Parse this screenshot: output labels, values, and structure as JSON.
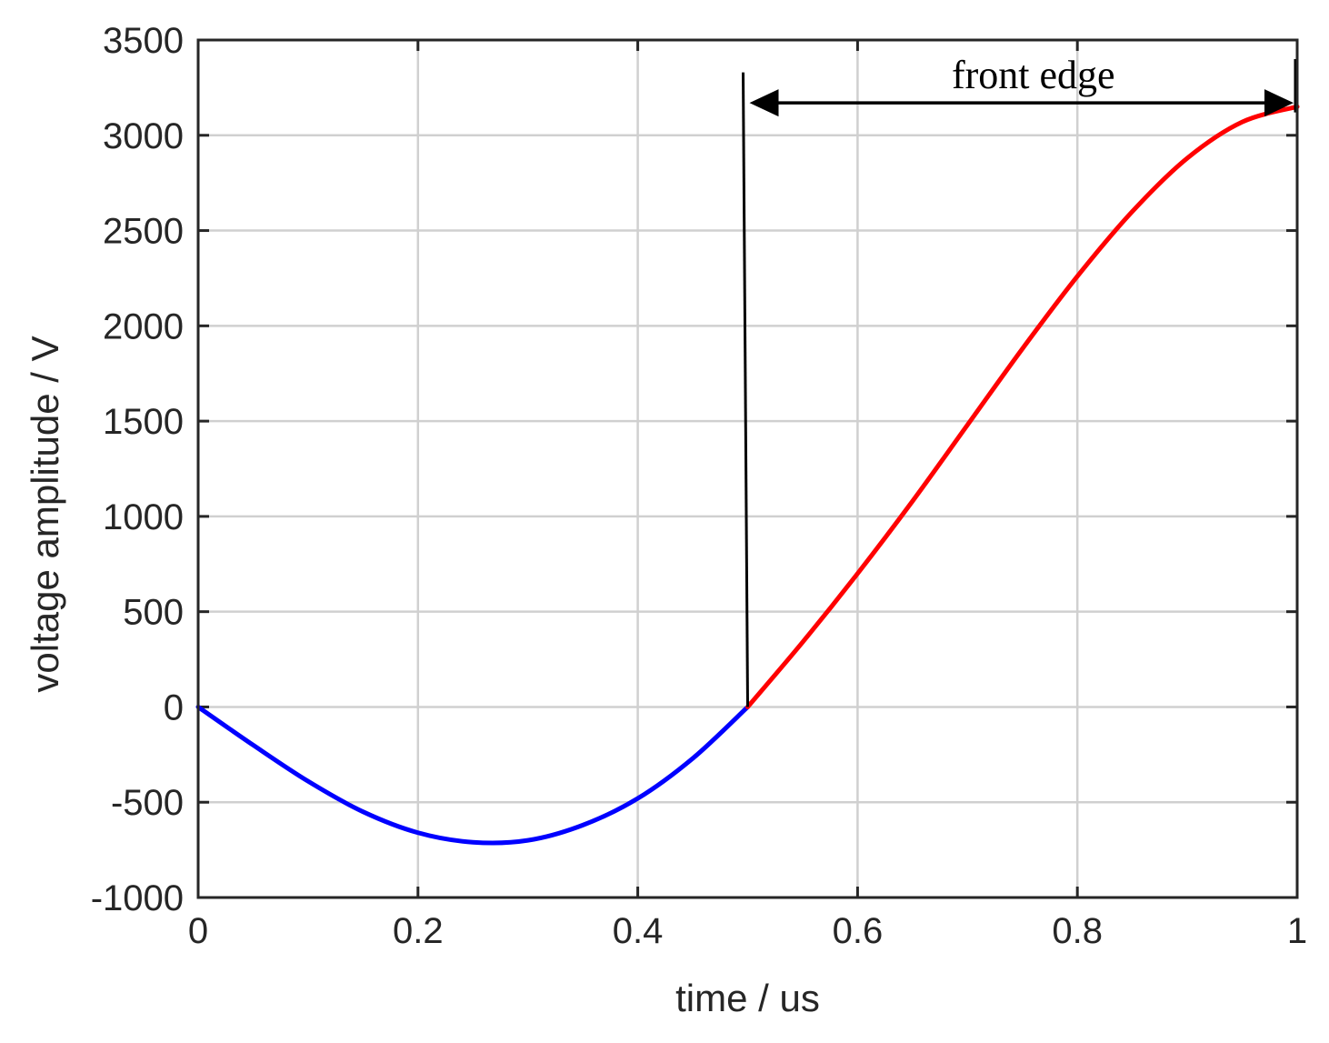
{
  "chart_data": {
    "type": "line",
    "xlabel": "time / us",
    "ylabel": "voltage amplitude / V",
    "xlim": [
      0,
      1
    ],
    "ylim": [
      -1000,
      3500
    ],
    "xticks": [
      0,
      0.2,
      0.4,
      0.6,
      0.8,
      1
    ],
    "xtick_labels": [
      "0",
      "0.2",
      "0.4",
      "0.6",
      "0.8",
      "1"
    ],
    "yticks": [
      -1000,
      -500,
      0,
      500,
      1000,
      1500,
      2000,
      2500,
      3000,
      3500
    ],
    "ytick_labels": [
      "-1000",
      "-500",
      "0",
      "500",
      "1000",
      "1500",
      "2000",
      "2500",
      "3000",
      "3500"
    ],
    "grid": true,
    "series": [
      {
        "color": "#0000ff",
        "x": [
          0,
          0.05,
          0.1,
          0.15,
          0.2,
          0.25,
          0.3,
          0.35,
          0.4,
          0.45,
          0.5
        ],
        "y": [
          0,
          -200,
          -390,
          -550,
          -660,
          -710,
          -700,
          -620,
          -480,
          -270,
          0
        ]
      },
      {
        "color": "#ff0000",
        "x": [
          0.5,
          0.55,
          0.6,
          0.65,
          0.7,
          0.75,
          0.8,
          0.85,
          0.9,
          0.95,
          1.0
        ],
        "y": [
          0,
          340,
          700,
          1080,
          1480,
          1880,
          2260,
          2600,
          2880,
          3070,
          3150
        ]
      }
    ],
    "annotations": [
      {
        "text": "front edge",
        "x_start": 0.5,
        "x_end": 1.0,
        "arrow_y": 3170,
        "color": "#000000"
      }
    ]
  }
}
